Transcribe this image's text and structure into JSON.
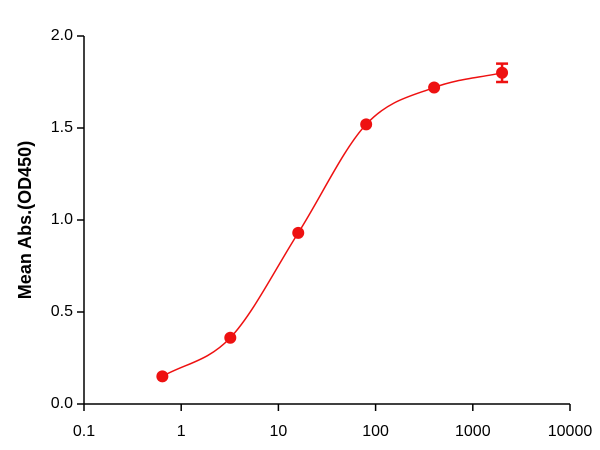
{
  "chart_data": {
    "type": "scatter",
    "y_label": "Mean Abs.(OD450)",
    "x_scale": "log",
    "xlim": [
      0.1,
      10000
    ],
    "xticks": [
      0.1,
      1,
      10,
      100,
      1000,
      10000
    ],
    "ylim": [
      0,
      2
    ],
    "yticks": [
      {
        "value": 0,
        "label": "0.0"
      },
      0.5,
      {
        "value": 1,
        "label": "1.0"
      },
      1.5,
      {
        "value": 2,
        "label": "2.0"
      }
    ],
    "series": [
      {
        "color": "#ee1111",
        "x": [
          0.64,
          3.2,
          16,
          80,
          400,
          2000
        ],
        "values": [
          0.15,
          0.36,
          0.93,
          1.52,
          1.72,
          1.8
        ],
        "errors": [
          null,
          null,
          null,
          null,
          null,
          0.05
        ],
        "fit_line": true
      }
    ]
  }
}
